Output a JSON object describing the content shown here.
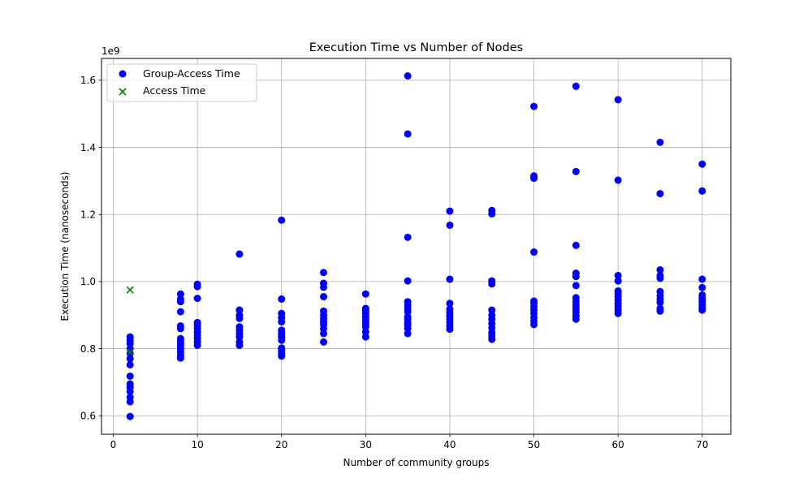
{
  "chart_data": {
    "type": "scatter",
    "title": "Execution Time vs Number of Nodes",
    "xlabel": "Number of community groups",
    "ylabel": "Execution Time (nanoseconds)",
    "y_offset_label": "1e9",
    "xlim": [
      -1.4,
      73.4
    ],
    "ylim": [
      0.545,
      1.665
    ],
    "x_ticks": [
      0,
      10,
      20,
      30,
      40,
      50,
      60,
      70
    ],
    "y_ticks": [
      0.6,
      0.8,
      1.0,
      1.2,
      1.4,
      1.6
    ],
    "y_tick_labels": [
      "0.6",
      "0.8",
      "1.0",
      "1.2",
      "1.4",
      "1.6"
    ],
    "grid": true,
    "legend_position": "top-left",
    "series": [
      {
        "name": "Group-Access Time",
        "marker": "circle",
        "color": "#0000ff",
        "points": [
          [
            2,
            0.598
          ],
          [
            2,
            0.642
          ],
          [
            2,
            0.655
          ],
          [
            2,
            0.672
          ],
          [
            2,
            0.685
          ],
          [
            2,
            0.695
          ],
          [
            2,
            0.718
          ],
          [
            2,
            0.752
          ],
          [
            2,
            0.77
          ],
          [
            2,
            0.785
          ],
          [
            2,
            0.8
          ],
          [
            2,
            0.815
          ],
          [
            2,
            0.825
          ],
          [
            2,
            0.835
          ],
          [
            8,
            0.772
          ],
          [
            8,
            0.78
          ],
          [
            8,
            0.79
          ],
          [
            8,
            0.8
          ],
          [
            8,
            0.808
          ],
          [
            8,
            0.815
          ],
          [
            8,
            0.822
          ],
          [
            8,
            0.83
          ],
          [
            8,
            0.86
          ],
          [
            8,
            0.868
          ],
          [
            8,
            0.91
          ],
          [
            8,
            0.94
          ],
          [
            8,
            0.948
          ],
          [
            8,
            0.963
          ],
          [
            10,
            0.81
          ],
          [
            10,
            0.82
          ],
          [
            10,
            0.83
          ],
          [
            10,
            0.84
          ],
          [
            10,
            0.85
          ],
          [
            10,
            0.86
          ],
          [
            10,
            0.87
          ],
          [
            10,
            0.878
          ],
          [
            10,
            0.95
          ],
          [
            10,
            0.985
          ],
          [
            10,
            0.992
          ],
          [
            15,
            0.81
          ],
          [
            15,
            0.82
          ],
          [
            15,
            0.835
          ],
          [
            15,
            0.845
          ],
          [
            15,
            0.855
          ],
          [
            15,
            0.865
          ],
          [
            15,
            0.89
          ],
          [
            15,
            0.9
          ],
          [
            15,
            0.915
          ],
          [
            15,
            1.082
          ],
          [
            20,
            0.778
          ],
          [
            20,
            0.785
          ],
          [
            20,
            0.795
          ],
          [
            20,
            0.802
          ],
          [
            20,
            0.825
          ],
          [
            20,
            0.835
          ],
          [
            20,
            0.845
          ],
          [
            20,
            0.855
          ],
          [
            20,
            0.88
          ],
          [
            20,
            0.892
          ],
          [
            20,
            0.905
          ],
          [
            20,
            0.948
          ],
          [
            20,
            1.183
          ],
          [
            25,
            0.82
          ],
          [
            25,
            0.845
          ],
          [
            25,
            0.86
          ],
          [
            25,
            0.872
          ],
          [
            25,
            0.88
          ],
          [
            25,
            0.89
          ],
          [
            25,
            0.9
          ],
          [
            25,
            0.912
          ],
          [
            25,
            0.955
          ],
          [
            25,
            0.983
          ],
          [
            25,
            0.995
          ],
          [
            25,
            1.027
          ],
          [
            30,
            0.835
          ],
          [
            30,
            0.85
          ],
          [
            30,
            0.865
          ],
          [
            30,
            0.875
          ],
          [
            30,
            0.885
          ],
          [
            30,
            0.895
          ],
          [
            30,
            0.905
          ],
          [
            30,
            0.912
          ],
          [
            30,
            0.92
          ],
          [
            30,
            0.963
          ],
          [
            35,
            0.845
          ],
          [
            35,
            0.86
          ],
          [
            35,
            0.87
          ],
          [
            35,
            0.878
          ],
          [
            35,
            0.888
          ],
          [
            35,
            0.895
          ],
          [
            35,
            0.91
          ],
          [
            35,
            0.92
          ],
          [
            35,
            0.93
          ],
          [
            35,
            0.94
          ],
          [
            35,
            1.002
          ],
          [
            35,
            1.132
          ],
          [
            35,
            1.44
          ],
          [
            35,
            1.613
          ],
          [
            40,
            0.858
          ],
          [
            40,
            0.868
          ],
          [
            40,
            0.878
          ],
          [
            40,
            0.888
          ],
          [
            40,
            0.898
          ],
          [
            40,
            0.908
          ],
          [
            40,
            0.918
          ],
          [
            40,
            0.935
          ],
          [
            40,
            1.007
          ],
          [
            40,
            1.168
          ],
          [
            40,
            1.21
          ],
          [
            45,
            0.828
          ],
          [
            45,
            0.838
          ],
          [
            45,
            0.848
          ],
          [
            45,
            0.862
          ],
          [
            45,
            0.875
          ],
          [
            45,
            0.888
          ],
          [
            45,
            0.9
          ],
          [
            45,
            0.915
          ],
          [
            45,
            0.993
          ],
          [
            45,
            1.002
          ],
          [
            45,
            1.202
          ],
          [
            45,
            1.212
          ],
          [
            50,
            0.872
          ],
          [
            50,
            0.882
          ],
          [
            50,
            0.893
          ],
          [
            50,
            0.905
          ],
          [
            50,
            0.915
          ],
          [
            50,
            0.925
          ],
          [
            50,
            0.935
          ],
          [
            50,
            0.942
          ],
          [
            50,
            1.088
          ],
          [
            50,
            1.308
          ],
          [
            50,
            1.315
          ],
          [
            50,
            1.522
          ],
          [
            55,
            0.888
          ],
          [
            55,
            0.898
          ],
          [
            55,
            0.91
          ],
          [
            55,
            0.92
          ],
          [
            55,
            0.93
          ],
          [
            55,
            0.94
          ],
          [
            55,
            0.952
          ],
          [
            55,
            0.988
          ],
          [
            55,
            1.015
          ],
          [
            55,
            1.025
          ],
          [
            55,
            1.108
          ],
          [
            55,
            1.328
          ],
          [
            55,
            1.582
          ],
          [
            60,
            0.905
          ],
          [
            60,
            0.915
          ],
          [
            60,
            0.925
          ],
          [
            60,
            0.935
          ],
          [
            60,
            0.945
          ],
          [
            60,
            0.955
          ],
          [
            60,
            0.965
          ],
          [
            60,
            0.972
          ],
          [
            60,
            1.002
          ],
          [
            60,
            1.018
          ],
          [
            60,
            1.302
          ],
          [
            60,
            1.542
          ],
          [
            65,
            0.912
          ],
          [
            65,
            0.92
          ],
          [
            65,
            0.938
          ],
          [
            65,
            0.948
          ],
          [
            65,
            0.958
          ],
          [
            65,
            0.97
          ],
          [
            65,
            1.01
          ],
          [
            65,
            1.018
          ],
          [
            65,
            1.035
          ],
          [
            65,
            1.262
          ],
          [
            65,
            1.415
          ],
          [
            70,
            0.915
          ],
          [
            70,
            0.922
          ],
          [
            70,
            0.93
          ],
          [
            70,
            0.94
          ],
          [
            70,
            0.95
          ],
          [
            70,
            0.96
          ],
          [
            70,
            0.982
          ],
          [
            70,
            1.007
          ],
          [
            70,
            1.27
          ],
          [
            70,
            1.35
          ]
        ]
      },
      {
        "name": "Access Time",
        "marker": "x",
        "color": "#008000",
        "points": [
          [
            2,
            0.975
          ],
          [
            2,
            0.79
          ]
        ]
      }
    ]
  }
}
